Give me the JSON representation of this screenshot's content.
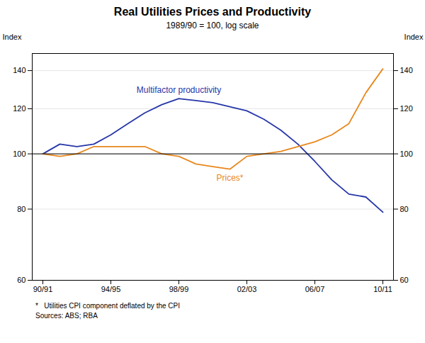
{
  "chart_data": {
    "type": "line",
    "title": "Real Utilities Prices and Productivity",
    "subtitle": "1989/90 = 100, log scale",
    "ylabel": "Index",
    "y2label": "Index",
    "categories": [
      "90/91",
      null,
      null,
      null,
      "94/95",
      null,
      null,
      null,
      "98/99",
      null,
      null,
      null,
      "02/03",
      null,
      null,
      null,
      "06/07",
      null,
      null,
      null,
      "10/11"
    ],
    "series": [
      {
        "name": "Multifactor productivity",
        "color": "#2636a8",
        "values": [
          100,
          104,
          103,
          104,
          108,
          113,
          118,
          122,
          125,
          124,
          123,
          121,
          119,
          115,
          110,
          104,
          97,
          90,
          85,
          84,
          79
        ]
      },
      {
        "name": "Prices*",
        "color": "#e8871c",
        "values": [
          100,
          99,
          100,
          103,
          103,
          103,
          103,
          100,
          99,
          96,
          95,
          94,
          99,
          100,
          101,
          103,
          105,
          108,
          113,
          128,
          141
        ]
      }
    ],
    "ylim": [
      60,
      150
    ],
    "yticks": [
      60,
      80,
      100,
      120,
      140
    ],
    "y2lim": [
      60,
      150
    ],
    "y2ticks": [
      60,
      80,
      100,
      120,
      140
    ],
    "log": "y",
    "grid": true,
    "reference_line": {
      "value": 100,
      "color": "#000000"
    },
    "notes": [
      "*   Utilities CPI component deflated by the CPI",
      "Sources: ABS; RBA"
    ]
  }
}
